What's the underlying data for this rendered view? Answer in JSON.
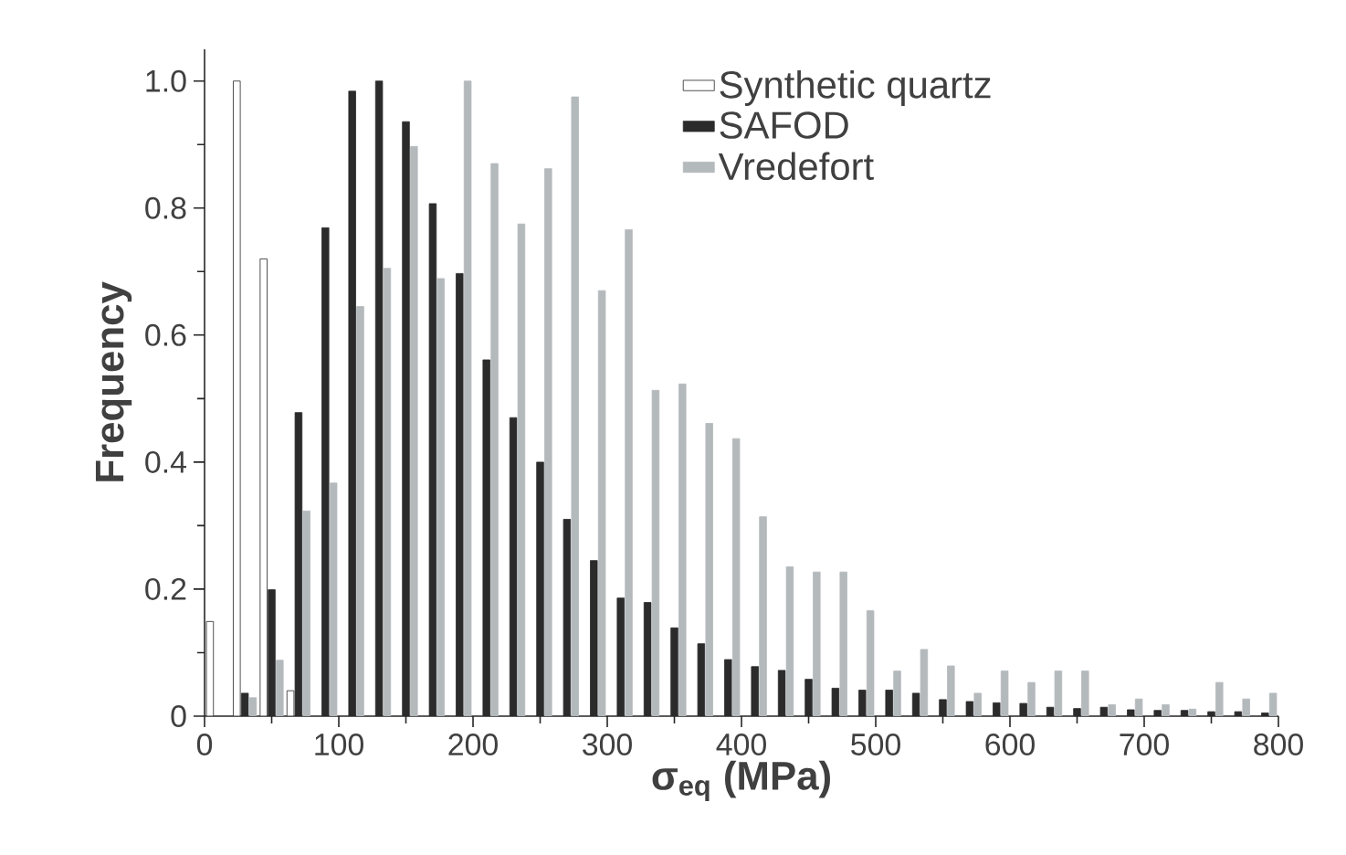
{
  "chart_data": {
    "type": "bar",
    "xlabel": "σ$_{eq}$ (MPa)",
    "ylabel": "Frequency",
    "x": [
      10,
      30,
      50,
      70,
      90,
      110,
      130,
      150,
      170,
      190,
      210,
      230,
      250,
      270,
      290,
      310,
      330,
      350,
      370,
      390,
      410,
      430,
      450,
      470,
      490,
      510,
      530,
      550,
      570,
      590,
      610,
      630,
      650,
      670,
      690,
      710,
      730,
      750,
      770,
      790
    ],
    "series": [
      {
        "name": "Synthetic  quartz",
        "color": "#ffffff",
        "values": [
          0.149,
          1.0,
          0.72,
          0.04,
          null,
          null,
          null,
          null,
          null,
          null,
          null,
          null,
          null,
          null,
          null,
          null,
          null,
          null,
          null,
          null,
          null,
          null,
          null,
          null,
          null,
          null,
          null,
          null,
          null,
          null,
          null,
          null,
          null,
          null,
          null,
          null,
          null,
          null,
          null,
          null
        ]
      },
      {
        "name": "SAFOD",
        "color": "#2b2b2b",
        "values": [
          null,
          0.036,
          0.199,
          0.478,
          0.769,
          0.984,
          1.0,
          0.936,
          0.807,
          0.697,
          0.561,
          0.47,
          0.4,
          0.31,
          0.245,
          0.186,
          0.179,
          0.139,
          0.114,
          0.089,
          0.078,
          0.072,
          0.058,
          0.044,
          0.041,
          0.041,
          0.036,
          0.026,
          0.023,
          0.021,
          0.02,
          0.014,
          0.012,
          0.014,
          0.01,
          0.009,
          0.009,
          0.007,
          0.007,
          0.005
        ]
      },
      {
        "name": "Vredefort",
        "color": "#b4b9bc",
        "values": [
          null,
          0.029,
          0.088,
          0.323,
          0.367,
          0.645,
          0.705,
          0.897,
          0.689,
          1.0,
          0.87,
          0.775,
          0.862,
          0.975,
          0.67,
          0.766,
          0.513,
          0.523,
          0.461,
          0.437,
          0.314,
          0.235,
          0.227,
          0.227,
          0.166,
          0.071,
          0.105,
          0.079,
          0.036,
          0.071,
          0.053,
          0.071,
          0.071,
          0.018,
          0.027,
          0.018,
          0.011,
          0.053,
          0.027,
          0.036
        ]
      }
    ],
    "xlim": [
      0,
      800
    ],
    "xticks": [
      0,
      100,
      200,
      300,
      400,
      500,
      600,
      700,
      800
    ],
    "ylim": [
      0,
      1.05
    ],
    "yticks": [
      0,
      0.2,
      0.4,
      0.6,
      0.8,
      {
        "value": 1,
        "label": "1.0"
      }
    ],
    "legend": "top right",
    "grid": false
  }
}
